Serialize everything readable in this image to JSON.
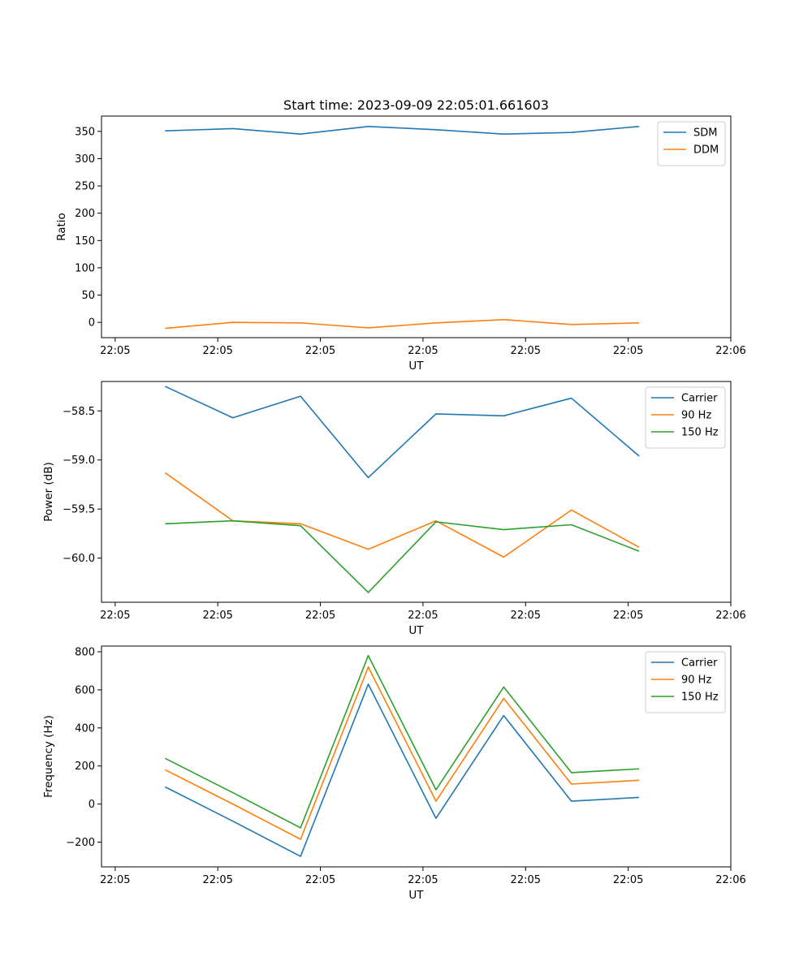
{
  "colors": {
    "blue": "#1f77b4",
    "orange": "#ff7f0e",
    "green": "#2ca02c",
    "legend_border": "#cccccc",
    "axis": "#000000"
  },
  "chart_data": [
    {
      "type": "line",
      "title": "Start time: 2023-09-09 22:05:01.661603",
      "xlabel": "UT",
      "ylabel": "Ratio",
      "xlim": [
        0,
        9.2
      ],
      "xticks": [
        0.2,
        1.7,
        3.2,
        4.7,
        6.2,
        7.7,
        9.2
      ],
      "xtick_labels": [
        "22:05",
        "22:05",
        "22:05",
        "22:05",
        "22:05",
        "22:05",
        "22:06"
      ],
      "ylim": [
        -28,
        378
      ],
      "yticks": [
        0,
        50,
        100,
        150,
        200,
        250,
        300,
        350
      ],
      "ytick_labels": [
        "0",
        "50",
        "100",
        "150",
        "200",
        "250",
        "300",
        "350"
      ],
      "legend_position": "top-right",
      "x": [
        0.93,
        1.92,
        2.91,
        3.9,
        4.89,
        5.88,
        6.87,
        7.86
      ],
      "series": [
        {
          "name": "SDM",
          "color": "blue",
          "values": [
            351,
            355,
            345,
            359,
            353,
            345,
            348,
            359
          ]
        },
        {
          "name": "DDM",
          "color": "orange",
          "values": [
            -11,
            0,
            -1,
            -10,
            -1,
            5,
            -4,
            -1
          ]
        }
      ]
    },
    {
      "type": "line",
      "title": "",
      "xlabel": "UT",
      "ylabel": "Power (dB)",
      "xlim": [
        0,
        9.2
      ],
      "xticks": [
        0.2,
        1.7,
        3.2,
        4.7,
        6.2,
        7.7,
        9.2
      ],
      "xtick_labels": [
        "22:05",
        "22:05",
        "22:05",
        "22:05",
        "22:05",
        "22:05",
        "22:06"
      ],
      "ylim": [
        -60.45,
        -58.2
      ],
      "yticks": [
        -60.0,
        -59.5,
        -59.0,
        -58.5
      ],
      "ytick_labels": [
        "−60.0",
        "−59.5",
        "−59.0",
        "−58.5"
      ],
      "legend_position": "top-right",
      "x": [
        0.93,
        1.92,
        2.91,
        3.9,
        4.89,
        5.88,
        6.87,
        7.86
      ],
      "series": [
        {
          "name": "Carrier",
          "color": "blue",
          "values": [
            -58.25,
            -58.57,
            -58.35,
            -59.18,
            -58.53,
            -58.55,
            -58.37,
            -58.96
          ]
        },
        {
          "name": "90 Hz",
          "color": "orange",
          "values": [
            -59.13,
            -59.62,
            -59.65,
            -59.91,
            -59.62,
            -59.99,
            -59.51,
            -59.89
          ]
        },
        {
          "name": "150 Hz",
          "color": "green",
          "values": [
            -59.65,
            -59.62,
            -59.67,
            -60.35,
            -59.63,
            -59.71,
            -59.66,
            -59.93
          ]
        }
      ]
    },
    {
      "type": "line",
      "title": "",
      "xlabel": "UT",
      "ylabel": "Frequency (Hz)",
      "xlim": [
        0,
        9.2
      ],
      "xticks": [
        0.2,
        1.7,
        3.2,
        4.7,
        6.2,
        7.7,
        9.2
      ],
      "xtick_labels": [
        "22:05",
        "22:05",
        "22:05",
        "22:05",
        "22:05",
        "22:05",
        "22:06"
      ],
      "ylim": [
        -330,
        830
      ],
      "yticks": [
        -200,
        0,
        200,
        400,
        600,
        800
      ],
      "ytick_labels": [
        "−200",
        "0",
        "200",
        "400",
        "600",
        "800"
      ],
      "legend_position": "top-right",
      "x": [
        0.93,
        1.92,
        2.91,
        3.9,
        4.89,
        5.88,
        6.87,
        7.86
      ],
      "series": [
        {
          "name": "Carrier",
          "color": "blue",
          "values": [
            90,
            -90,
            -275,
            630,
            -75,
            465,
            15,
            35
          ]
        },
        {
          "name": "90 Hz",
          "color": "orange",
          "values": [
            180,
            0,
            -185,
            720,
            15,
            555,
            105,
            125
          ]
        },
        {
          "name": "150 Hz",
          "color": "green",
          "values": [
            240,
            60,
            -125,
            780,
            75,
            615,
            165,
            185
          ]
        }
      ]
    }
  ]
}
